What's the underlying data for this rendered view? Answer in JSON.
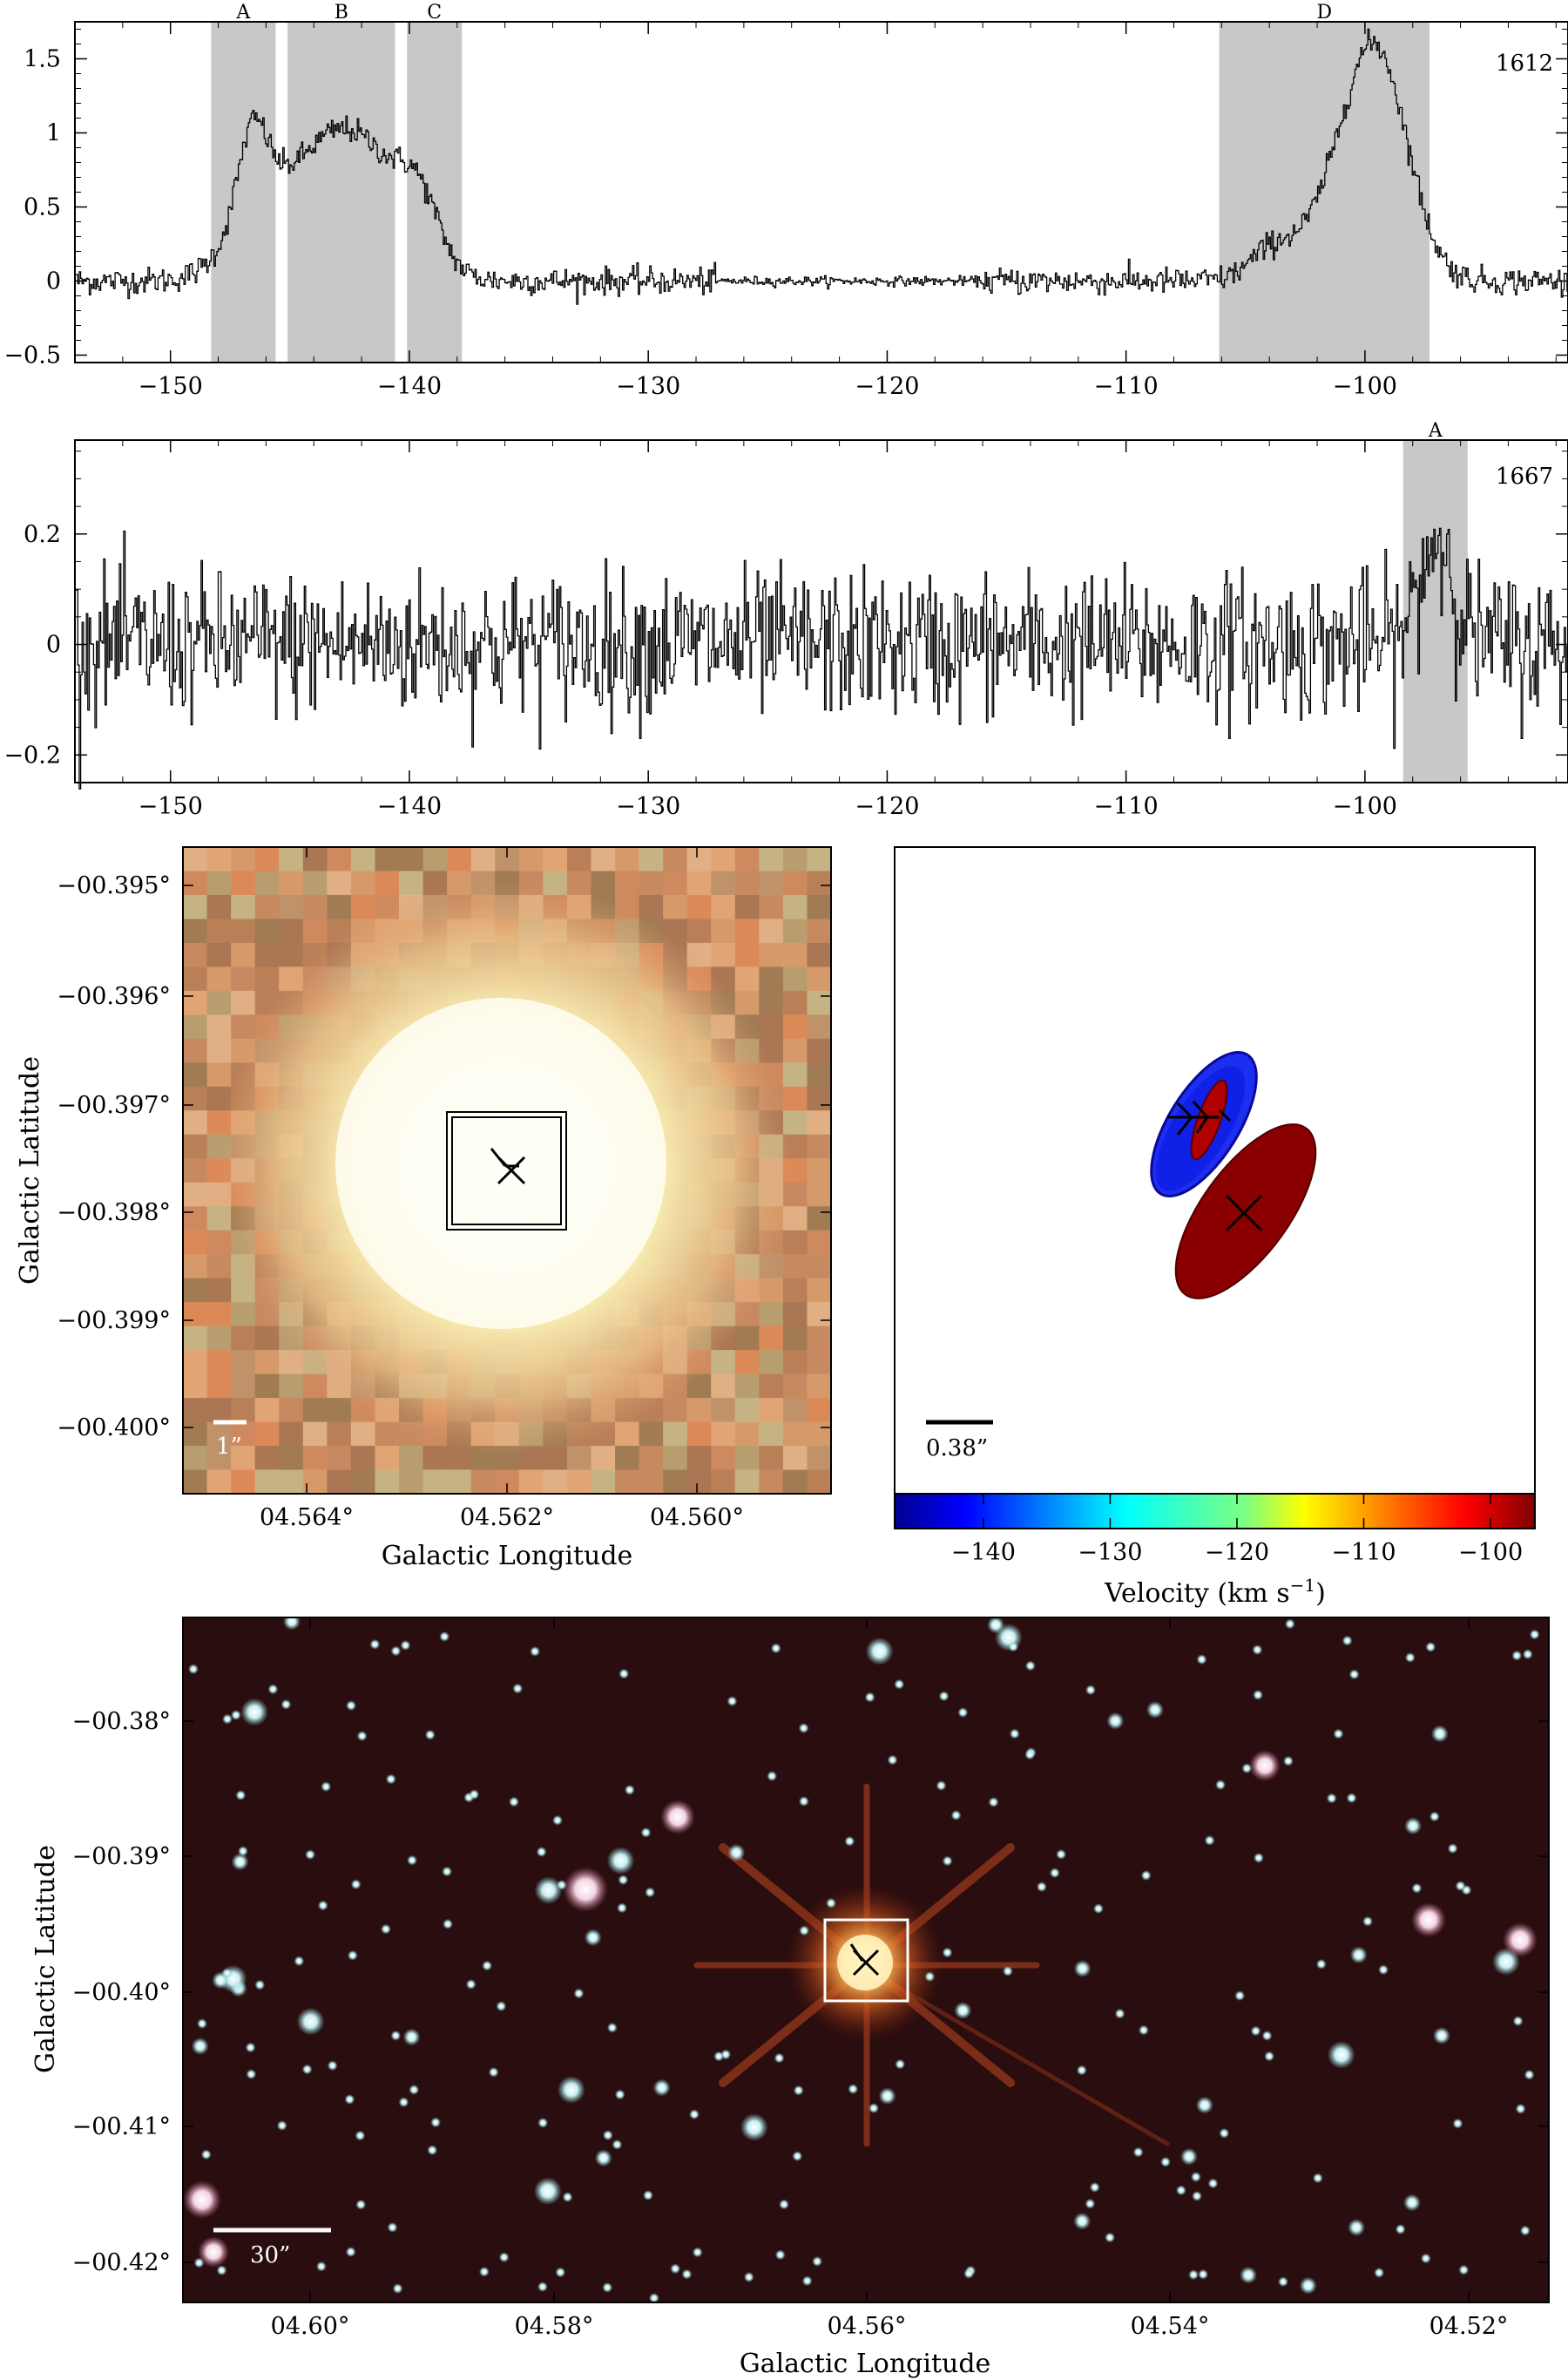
{
  "spectra": [
    {
      "name": "1612",
      "xlim": [
        -154,
        -91.5
      ],
      "ylim": [
        -0.55,
        1.75
      ],
      "xticks": [
        -150,
        -140,
        -130,
        -120,
        -110,
        -100
      ],
      "yticks": [
        -0.5,
        0,
        0.5,
        1,
        1.5
      ],
      "ytick_labels": [
        "−0.5",
        "0",
        "0.5",
        "1",
        "1.5"
      ],
      "xtick_labels": [
        "−150",
        "−140",
        "−130",
        "−120",
        "−110",
        "−100"
      ],
      "regions": [
        {
          "label": "A",
          "from": -148.3,
          "to": -145.6
        },
        {
          "label": "B",
          "from": -145.1,
          "to": -140.6
        },
        {
          "label": "C",
          "from": -140.1,
          "to": -137.8
        },
        {
          "label": "D",
          "from": -106.1,
          "to": -97.3
        }
      ],
      "features": [
        {
          "center": -146.6,
          "amp": 0.55,
          "width": 0.6
        },
        {
          "center": -146.2,
          "amp": 0.45,
          "width": 1.4
        },
        {
          "center": -143.0,
          "amp": 0.92,
          "width": 1.7
        },
        {
          "center": -140.5,
          "amp": 0.35,
          "width": 1.4
        },
        {
          "center": -139.6,
          "amp": 0.3,
          "width": 0.8
        },
        {
          "center": -103.8,
          "amp": 0.22,
          "width": 1.0
        },
        {
          "center": -99.5,
          "amp": 1.48,
          "width": 1.3
        },
        {
          "center": -101.3,
          "amp": 0.35,
          "width": 1.2
        }
      ],
      "noise": 0.045
    },
    {
      "name": "1667",
      "xlim": [
        -154,
        -91.5
      ],
      "ylim": [
        -0.25,
        0.37
      ],
      "xticks": [
        -150,
        -140,
        -130,
        -120,
        -110,
        -100
      ],
      "yticks": [
        -0.2,
        0,
        0.2
      ],
      "ytick_labels": [
        "−0.2",
        "0",
        "0.2"
      ],
      "xtick_labels": [
        "−150",
        "−140",
        "−130",
        "−120",
        "−110",
        "−100"
      ],
      "regions": [
        {
          "label": "A",
          "from": -98.4,
          "to": -95.7
        }
      ],
      "features": [
        {
          "center": -97.0,
          "amp": 0.19,
          "width": 0.7
        }
      ],
      "noise": 0.065
    }
  ],
  "chart_data": [
    {
      "type": "line",
      "series": [
        {
          "name": "1612",
          "x_range": [
            -154,
            -91.5
          ],
          "peaks": [
            {
              "x": -146.6,
              "y": 1.22
            },
            {
              "x": -143.0,
              "y": 1.05
            },
            {
              "x": -139.6,
              "y": 0.42
            },
            {
              "x": -99.0,
              "y": 1.58
            }
          ]
        }
      ],
      "shaded_regions": [
        "A: -148.3 to -145.6",
        "B: -145.1 to -140.6",
        "C: -140.1 to -137.8",
        "D: -106.1 to -97.3"
      ],
      "ylim": [
        -0.55,
        1.75
      ]
    },
    {
      "type": "line",
      "series": [
        {
          "name": "1667",
          "x_range": [
            -154,
            -91.5
          ],
          "peaks": [
            {
              "x": -97.0,
              "y": 0.31
            }
          ]
        }
      ],
      "shaded_regions": [
        "A: -98.4 to -95.7"
      ],
      "ylim": [
        -0.25,
        0.37
      ]
    }
  ],
  "zoom_image": {
    "ylabel": "Galactic Latitude",
    "xlabel": "Galactic Longitude",
    "yticks": [
      "−00.395°",
      "−00.396°",
      "−00.397°",
      "−00.398°",
      "−00.399°",
      "−00.400°"
    ],
    "xticks": [
      "04.564°",
      "04.562°",
      "04.560°"
    ],
    "scalebar_label": "1”"
  },
  "maser_map": {
    "scalebar_label": "0.38”",
    "colorbar_label": "Velocity (km s",
    "colorbar_label_sup": "−1",
    "colorbar_label_end": ")",
    "colorbar_ticks": [
      "−140",
      "−130",
      "−120",
      "−110",
      "−100"
    ],
    "colorbar_range": [
      -147,
      -96.5
    ],
    "ellipse_colors": {
      "blue": "#0a1ee6",
      "red": "#8a0000",
      "dark_red": "#870000"
    }
  },
  "wide_image": {
    "ylabel": "Galactic Latitude",
    "xlabel": "Galactic Longitude",
    "yticks": [
      "−00.38°",
      "−00.39°",
      "−00.40°",
      "−00.41°",
      "−00.42°"
    ],
    "xticks": [
      "04.60°",
      "04.58°",
      "04.56°",
      "04.54°",
      "04.52°"
    ],
    "scalebar_label": "30”"
  }
}
